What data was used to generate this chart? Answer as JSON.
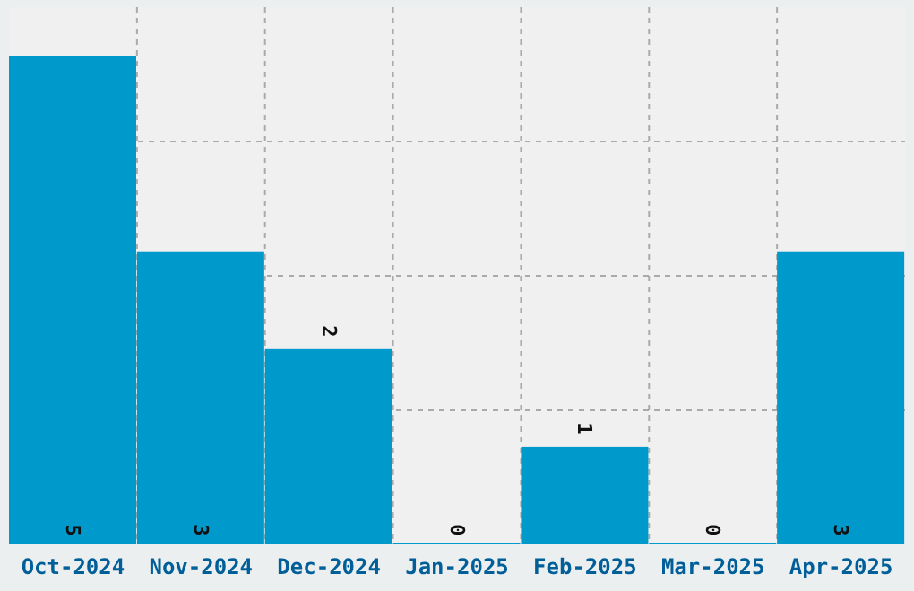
{
  "chart_data": {
    "type": "bar",
    "categories": [
      "Oct-2024",
      "Nov-2024",
      "Dec-2024",
      "Jan-2025",
      "Feb-2025",
      "Mar-2025",
      "Apr-2025"
    ],
    "values": [
      5,
      3,
      2,
      0,
      1,
      0,
      3
    ],
    "color": "#0099cc",
    "grid": true,
    "data_labels": true,
    "tick_labels": "x"
  }
}
